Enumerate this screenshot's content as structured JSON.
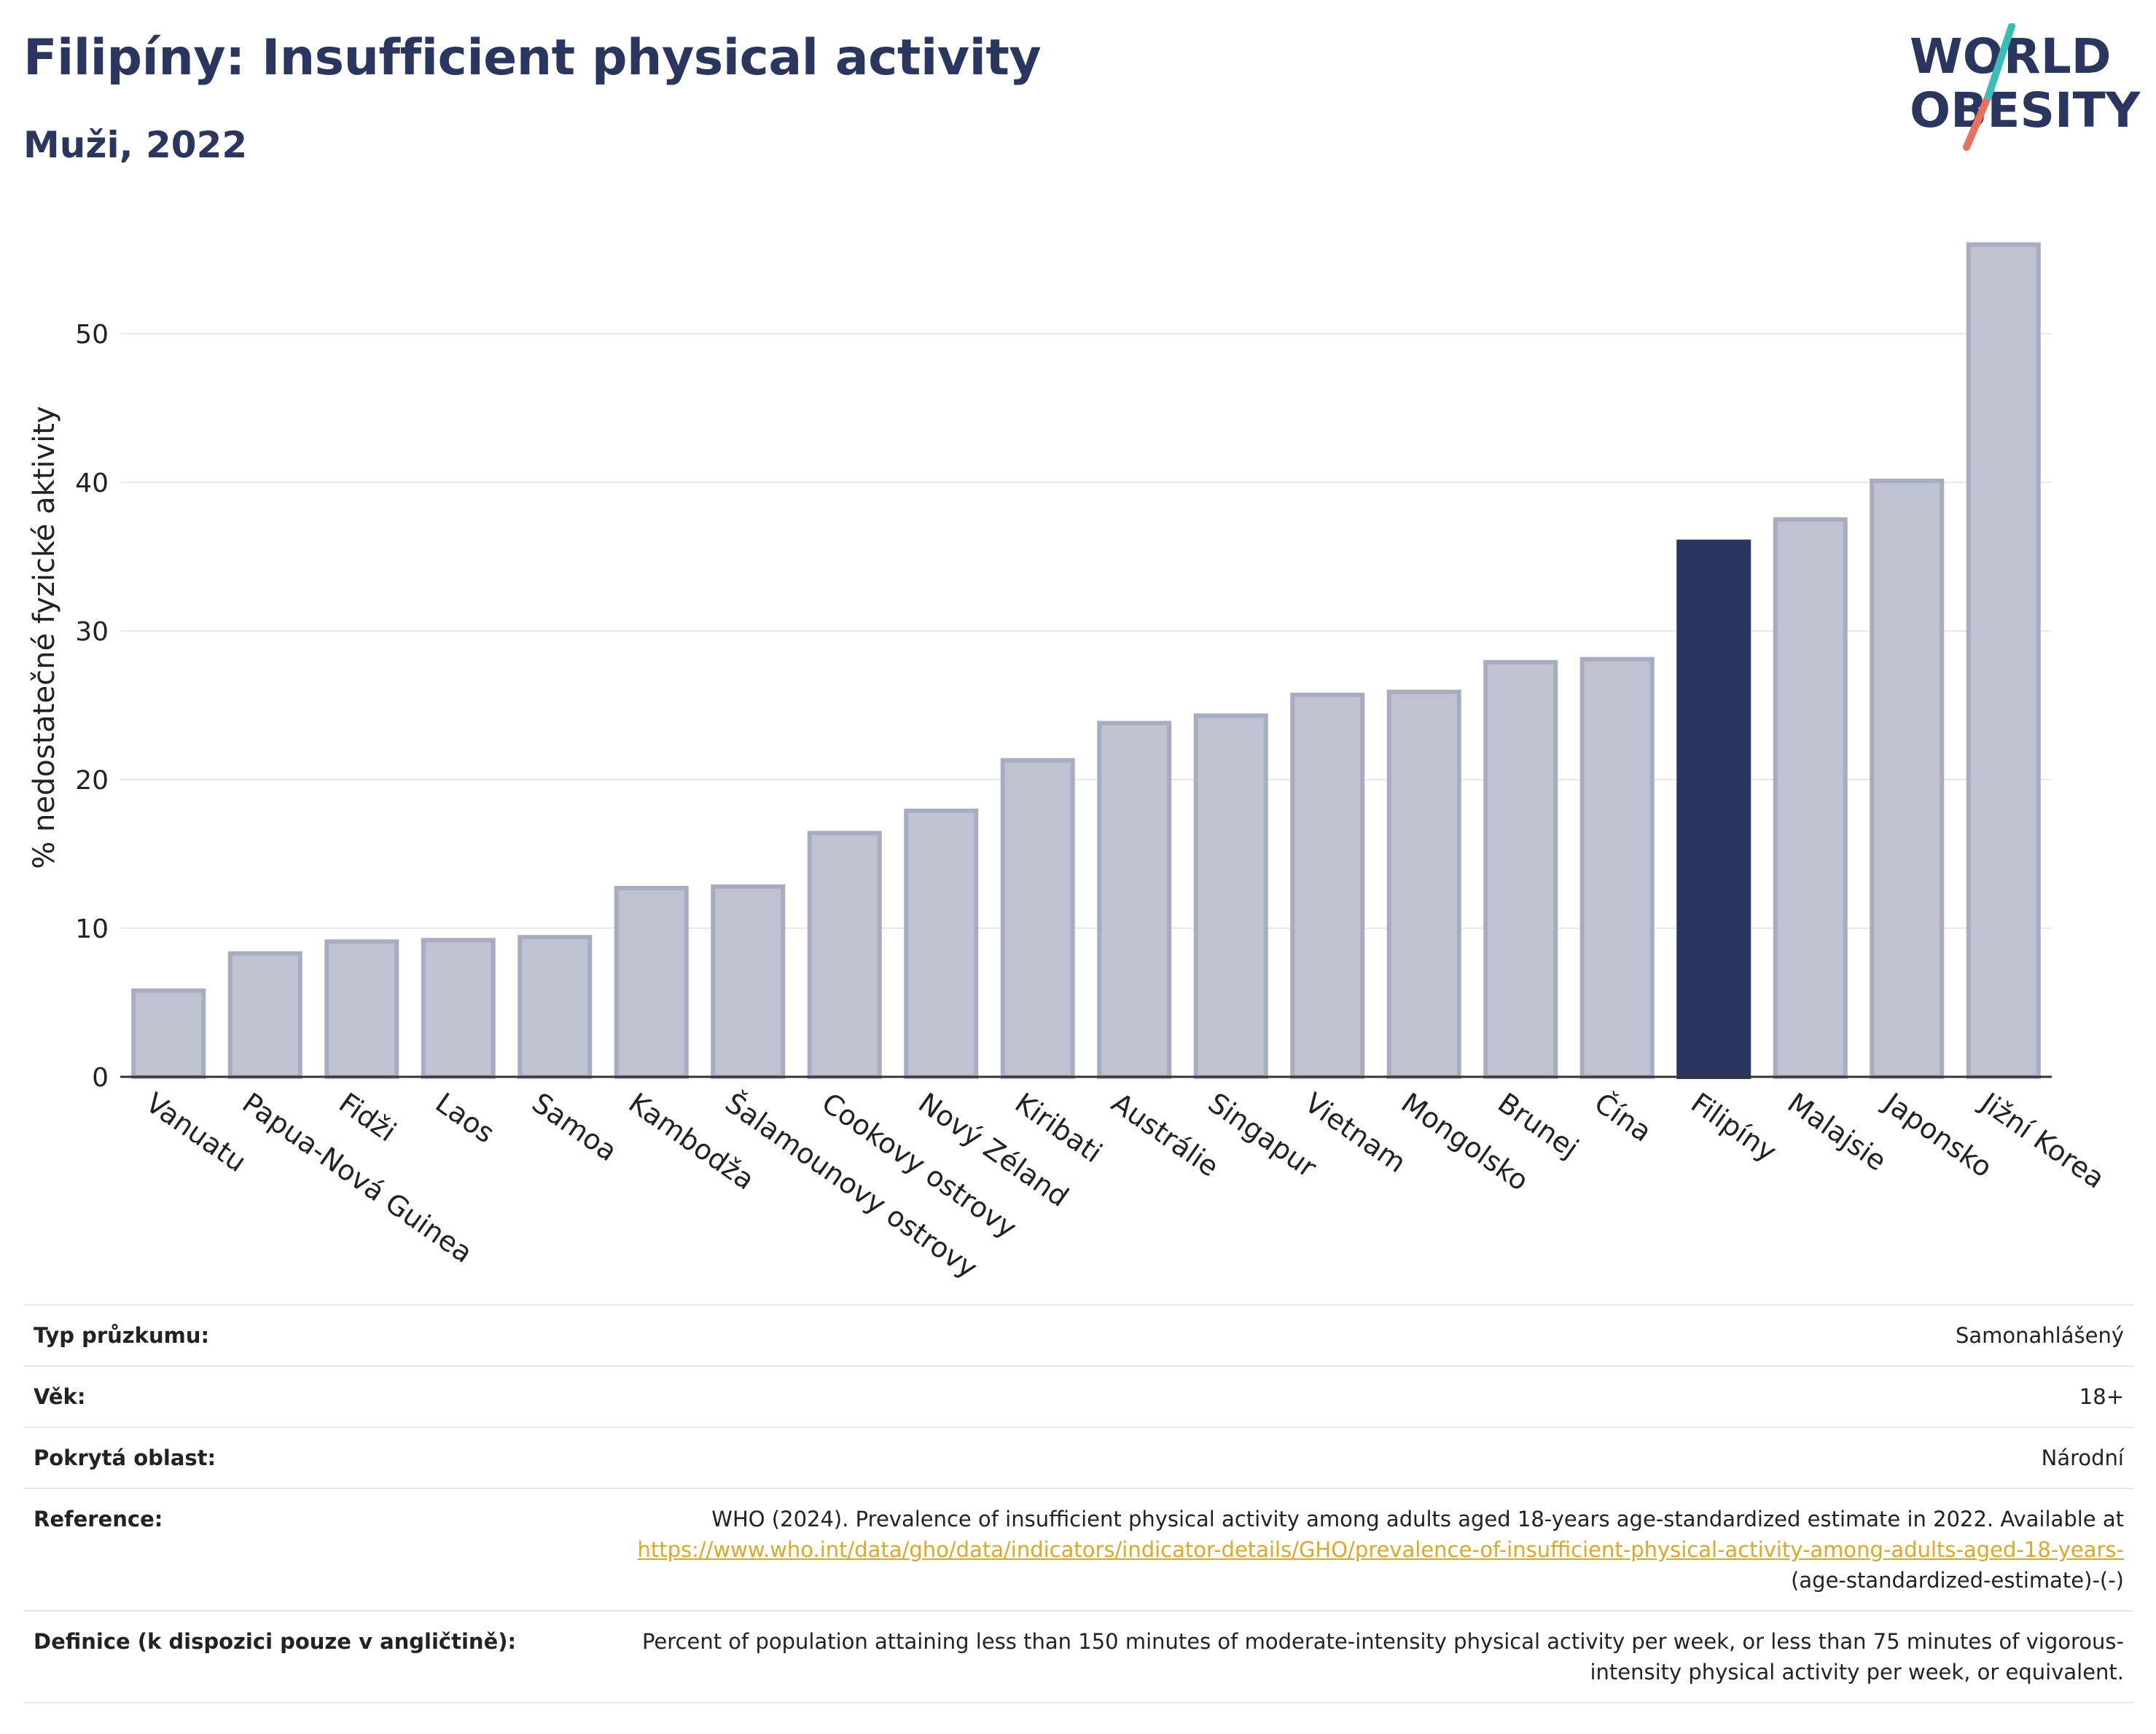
{
  "header": {
    "title": "Filipíny: Insufficient physical activity",
    "subtitle": "Muži, 2022",
    "logo_line1": "WORLD",
    "logo_line2": "OBESITY"
  },
  "colors": {
    "highlight_bar": "#2a3560",
    "other_bars": "#bfc3d1",
    "other_bar_outline": "#a7acc1",
    "title": "#2a3560",
    "link": "#e0a820",
    "logo_slash_teal": "#3bbcb5",
    "logo_slash_coral": "#e8705d"
  },
  "chart_data": {
    "type": "bar",
    "categories": [
      "Vanuatu",
      "Papua-Nová Guinea",
      "Fidži",
      "Laos",
      "Samoa",
      "Kambodža",
      "Šalamounovy ostrovy",
      "Cookovy ostrovy",
      "Nový Zéland",
      "Kiribati",
      "Austrálie",
      "Singapur",
      "Vietnam",
      "Mongolsko",
      "Brunej",
      "Čína",
      "Filipíny",
      "Malajsie",
      "Japonsko",
      "Jižní Korea"
    ],
    "values": [
      5.8,
      8.3,
      9.1,
      9.2,
      9.4,
      12.7,
      12.8,
      16.4,
      17.9,
      21.3,
      23.8,
      24.3,
      25.7,
      25.9,
      27.9,
      28.1,
      36.0,
      37.5,
      40.1,
      56.0
    ],
    "highlight": "Filipíny",
    "ylabel": "% nedostatečné fyzické aktivity",
    "xlabel": "",
    "yticks": [
      0,
      10,
      20,
      30,
      40,
      50
    ],
    "ylim": [
      0,
      57
    ],
    "grid": true,
    "legend": false
  },
  "info": {
    "rows": [
      {
        "label": "Typ průzkumu:",
        "value": "Samonahlášený"
      },
      {
        "label": "Věk:",
        "value": "18+"
      },
      {
        "label": "Pokrytá oblast:",
        "value": "Národní"
      }
    ],
    "reference": {
      "label": "Reference:",
      "text": "WHO (2024). Prevalence of insufficient physical activity among adults aged 18-years age-standardized estimate in 2022. Available at",
      "link": "https://www.who.int/data/gho/data/indicators/indicator-details/GHO/prevalence-of-insufficient-physical-activity-among-adults-aged-18-years-",
      "tail": "(age-standardized-estimate)-(-)"
    },
    "definition": {
      "label": "Definice (k dispozici pouze v angličtině):",
      "text": "Percent of population attaining less than 150 minutes of moderate-intensity physical activity per week, or less than 75 minutes of vigorous-intensity physical activity per week, or equivalent."
    }
  }
}
